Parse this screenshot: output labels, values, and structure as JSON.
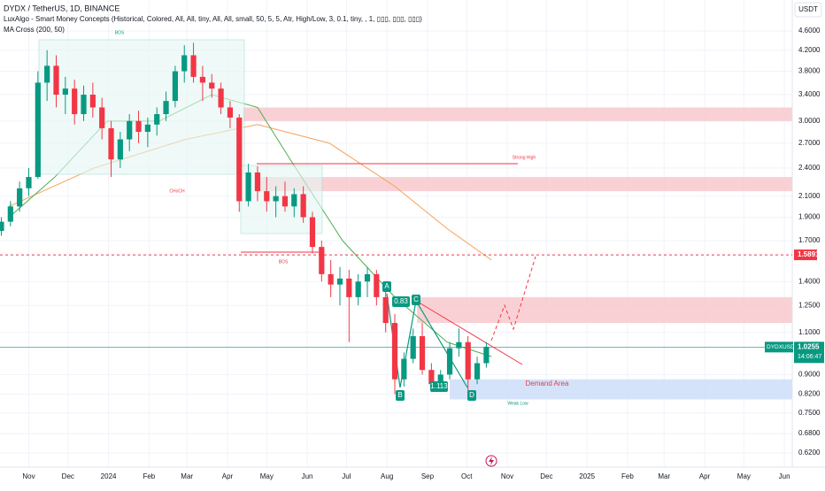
{
  "header": {
    "symbol": "DYDX / TetherUS, 1D, BINANCE",
    "indicator_1": "LuxAlgo - Smart Money Concepts (Historical, Colored, All, All, tiny, All, All, small, 50, 5, 5, Atr, High/Low, 3, 0.1, tiny, , 1, ▯▯▯, ▯▯▯, ▯▯▯)",
    "indicator_2": "MA Cross (200, 50)",
    "currency_button": "USDT"
  },
  "chart_data": {
    "type": "candlestick",
    "log_scale": true,
    "up_color": "#089981",
    "down_color": "#f23645",
    "xlim": [
      -22,
      584
    ],
    "ylim": [
      0.58,
      5.33
    ],
    "xticks": [
      {
        "value": 0,
        "label": "Nov"
      },
      {
        "value": 30,
        "label": "Dec"
      },
      {
        "value": 61,
        "label": "2024"
      },
      {
        "value": 92,
        "label": "Feb"
      },
      {
        "value": 121,
        "label": "Mar"
      },
      {
        "value": 152,
        "label": "Apr"
      },
      {
        "value": 182,
        "label": "May"
      },
      {
        "value": 213,
        "label": "Jun"
      },
      {
        "value": 243,
        "label": "Jul"
      },
      {
        "value": 274,
        "label": "Aug"
      },
      {
        "value": 305,
        "label": "Sep"
      },
      {
        "value": 335,
        "label": "Oct"
      },
      {
        "value": 366,
        "label": "Nov"
      },
      {
        "value": 396,
        "label": "Dec"
      },
      {
        "value": 427,
        "label": "2025"
      },
      {
        "value": 458,
        "label": "Feb"
      },
      {
        "value": 486,
        "label": "Mar"
      },
      {
        "value": 517,
        "label": "Apr"
      },
      {
        "value": 547,
        "label": "May"
      },
      {
        "value": 578,
        "label": "Jun"
      }
    ],
    "yticks": [
      {
        "value": 4.6,
        "label": "4.6000"
      },
      {
        "value": 4.2,
        "label": "4.2000"
      },
      {
        "value": 3.8,
        "label": "3.8000"
      },
      {
        "value": 3.4,
        "label": "3.4000"
      },
      {
        "value": 3,
        "label": "3.0000"
      },
      {
        "value": 2.7,
        "label": "2.7000"
      },
      {
        "value": 2.4,
        "label": "2.4000"
      },
      {
        "value": 2.1,
        "label": "2.1000"
      },
      {
        "value": 1.9,
        "label": "1.9000"
      },
      {
        "value": 1.7,
        "label": "1.7000"
      },
      {
        "value": 1.4,
        "label": "1.4000"
      },
      {
        "value": 1.25,
        "label": "1.2500"
      },
      {
        "value": 1.1,
        "label": "1.1000"
      },
      {
        "value": 0.9,
        "label": "0.9000"
      },
      {
        "value": 0.82,
        "label": "0.8200"
      },
      {
        "value": 0.75,
        "label": "0.7500"
      },
      {
        "value": 0.68,
        "label": "0.6800"
      },
      {
        "value": 0.62,
        "label": "0.6200"
      }
    ],
    "candles": {
      "x": [
        -21,
        -14,
        -7,
        0,
        7,
        14,
        21,
        28,
        35,
        42,
        49,
        56,
        63,
        70,
        77,
        84,
        91,
        98,
        105,
        112,
        119,
        126,
        133,
        140,
        147,
        154,
        161,
        168,
        175,
        182,
        189,
        196,
        203,
        210,
        217,
        224,
        231,
        238,
        245,
        252,
        259,
        266,
        273,
        280,
        287,
        294,
        301,
        308,
        315,
        322,
        329,
        336,
        343,
        350
      ],
      "open": [
        1.78,
        1.86,
        2.0,
        2.18,
        2.3,
        3.6,
        3.9,
        3.4,
        3.5,
        3.1,
        3.4,
        3.2,
        2.9,
        2.5,
        2.75,
        3.0,
        2.85,
        2.95,
        3.1,
        3.3,
        3.8,
        4.1,
        3.7,
        3.6,
        3.5,
        3.2,
        3.05,
        2.05,
        2.35,
        2.15,
        2.05,
        2.1,
        2.0,
        2.12,
        1.9,
        1.65,
        1.45,
        1.38,
        1.42,
        1.3,
        1.4,
        1.45,
        1.3,
        1.15,
        0.88,
        0.97,
        1.08,
        0.92,
        0.86,
        0.9,
        1.02,
        1.05,
        0.88,
        0.95
      ],
      "high": [
        1.9,
        2.05,
        2.25,
        2.4,
        3.8,
        4.2,
        4.1,
        3.7,
        3.65,
        3.55,
        3.6,
        3.35,
        3.0,
        2.85,
        3.1,
        3.15,
        3.05,
        3.2,
        3.45,
        3.9,
        4.3,
        4.35,
        3.9,
        3.75,
        3.6,
        3.3,
        3.1,
        2.45,
        2.42,
        2.3,
        2.2,
        2.25,
        2.18,
        2.2,
        1.95,
        1.7,
        1.55,
        1.5,
        1.48,
        1.45,
        1.5,
        1.48,
        1.35,
        1.2,
        1.0,
        1.12,
        1.15,
        0.95,
        0.92,
        1.05,
        1.12,
        1.08,
        0.98,
        1.05
      ],
      "low": [
        1.74,
        1.82,
        1.95,
        2.1,
        2.28,
        3.3,
        3.2,
        3.1,
        2.95,
        3.0,
        3.05,
        2.75,
        2.3,
        2.4,
        2.6,
        2.7,
        2.65,
        2.8,
        3.0,
        3.2,
        3.6,
        3.6,
        3.3,
        3.35,
        3.1,
        2.9,
        1.95,
        2.0,
        2.05,
        1.95,
        1.9,
        1.95,
        1.9,
        1.85,
        1.6,
        1.4,
        1.3,
        1.25,
        1.05,
        1.25,
        1.3,
        1.25,
        1.1,
        0.82,
        0.85,
        0.95,
        0.9,
        0.83,
        0.83,
        0.88,
        0.98,
        0.82,
        0.86,
        0.93
      ],
      "close": [
        1.86,
        2.0,
        2.18,
        2.3,
        3.6,
        3.9,
        3.4,
        3.5,
        3.1,
        3.4,
        3.2,
        2.9,
        2.5,
        2.75,
        3.0,
        2.85,
        2.95,
        3.1,
        3.3,
        3.8,
        4.1,
        3.7,
        3.6,
        3.5,
        3.2,
        3.05,
        2.05,
        2.35,
        2.15,
        2.05,
        2.1,
        2.0,
        2.12,
        1.9,
        1.65,
        1.45,
        1.38,
        1.42,
        1.3,
        1.4,
        1.45,
        1.3,
        1.15,
        0.88,
        0.97,
        1.08,
        0.92,
        0.86,
        0.9,
        1.02,
        1.05,
        0.88,
        0.95,
        1.0255
      ]
    },
    "overlays": [
      {
        "color": "#f5a15a",
        "x": [
          -15,
          50,
          120,
          175,
          230,
          280,
          320,
          354
        ],
        "values": [
          2.0,
          2.4,
          2.75,
          2.95,
          2.7,
          2.2,
          1.8,
          1.55
        ]
      },
      {
        "color": "#4caf50",
        "x": [
          -15,
          20,
          60,
          100,
          140,
          175,
          200,
          240,
          280,
          320,
          354
        ],
        "values": [
          1.9,
          2.3,
          3.0,
          3.0,
          3.4,
          3.2,
          2.5,
          1.7,
          1.3,
          1.05,
          0.98
        ]
      }
    ],
    "zones": [
      {
        "x0": 164,
        "x1": 584,
        "low": 3.0,
        "high": 3.2,
        "color": "#f7c6c9"
      },
      {
        "x0": 174,
        "x1": 584,
        "low": 2.15,
        "high": 2.3,
        "color": "#f7c6c9"
      },
      {
        "x0": 297,
        "x1": 584,
        "low": 1.15,
        "high": 1.3,
        "color": "#f7c6c9"
      },
      {
        "x0": 322,
        "x1": 584,
        "low": 0.8,
        "high": 0.88,
        "color": "#c9dcf7"
      }
    ],
    "target_price": 1.5891,
    "last_price": 1.0255,
    "symbol_tag": "DYDXUSDT",
    "countdown": "14:06:47",
    "annotations": [
      "BOS",
      "CHoCH",
      "BOS",
      "Strong High",
      "Demand Area",
      "Weak Low",
      "A",
      "B",
      "C",
      "D",
      "0.83",
      "1.113"
    ]
  }
}
